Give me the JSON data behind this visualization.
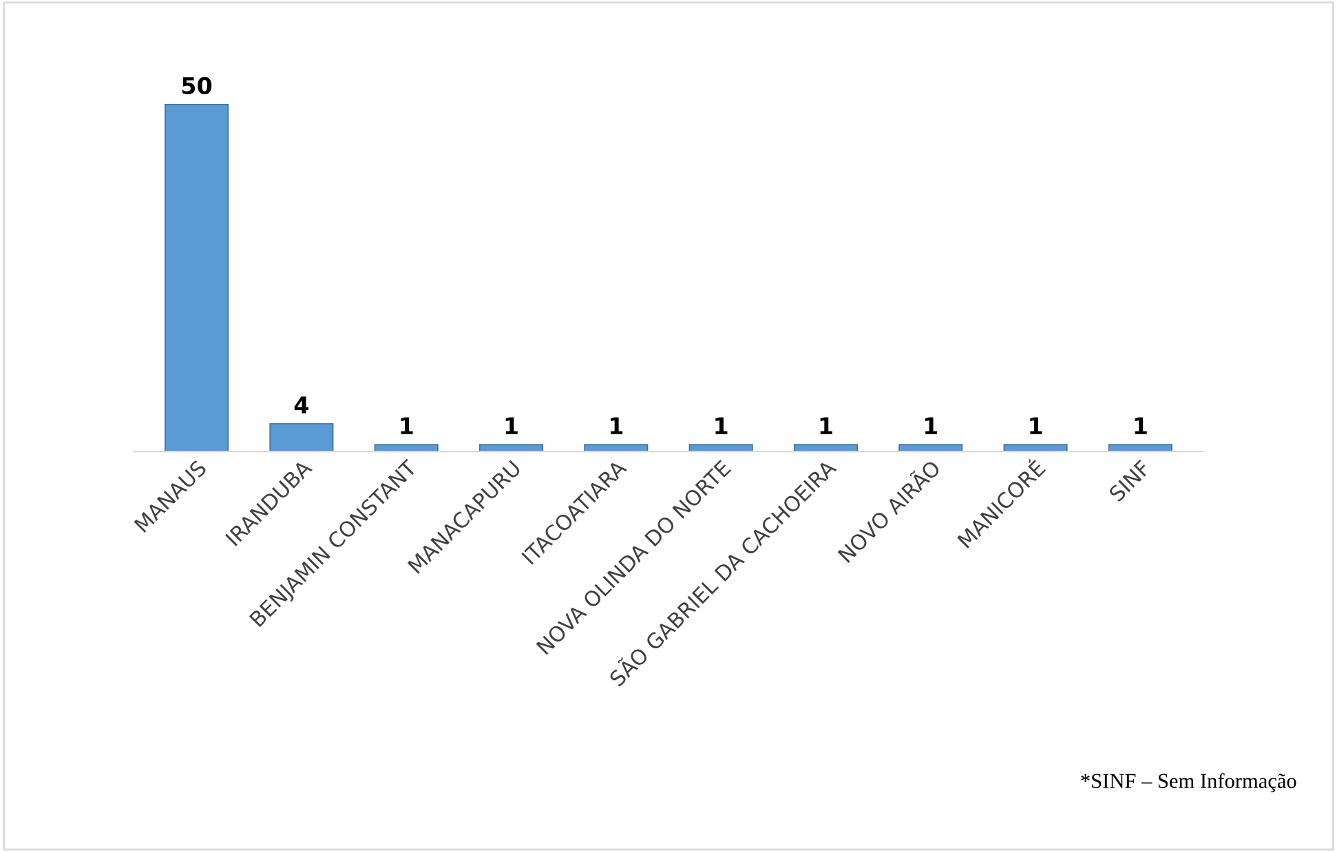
{
  "chart_data": {
    "type": "bar",
    "categories": [
      "MANAUS",
      "IRANDUBA",
      "BENJAMIN CONSTANT",
      "MANACAPURU",
      "ITACOATIARA",
      "NOVA OLINDA DO NORTE",
      "SÃO GABRIEL DA CACHOEIRA",
      "NOVO AIRÃO",
      "MANICORÉ",
      "SINF"
    ],
    "values": [
      50,
      4,
      1,
      1,
      1,
      1,
      1,
      1,
      1,
      1
    ],
    "color": "#5b9bd5",
    "data_labels": true,
    "tick_labels": "x",
    "grid": false,
    "annotations": [
      "*SINF – Sem Informação"
    ]
  }
}
